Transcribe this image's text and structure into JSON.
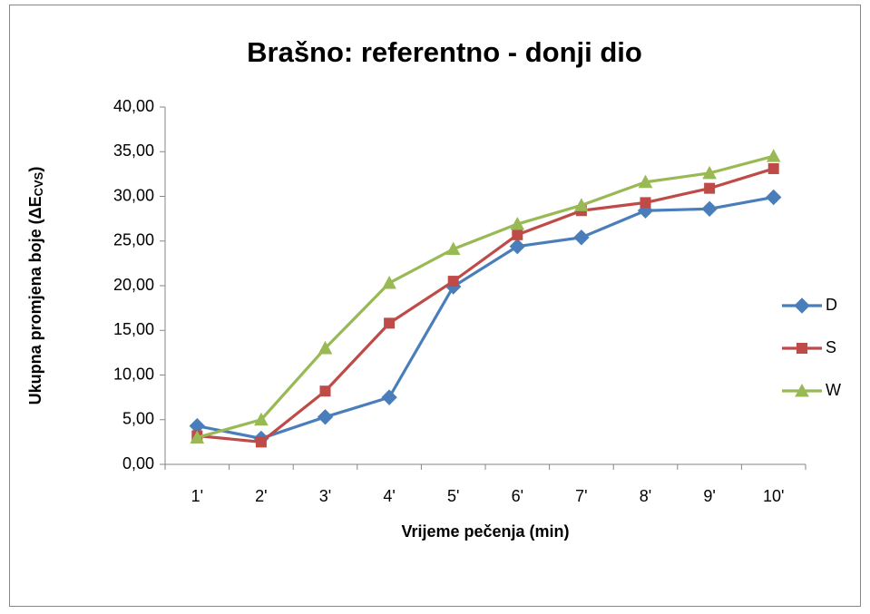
{
  "chart_data": {
    "type": "line",
    "title": "Brašno: referentno - donji dio",
    "xlabel": "Vrijeme pečenja (min)",
    "ylabel": "Ukupna promjena boje (ΔE",
    "ylabel_sub": "CVS",
    "ylabel_end": ")",
    "categories": [
      "1'",
      "2'",
      "3'",
      "4'",
      "5'",
      "6'",
      "7'",
      "8'",
      "9'",
      "10'"
    ],
    "series": [
      {
        "name": "D",
        "color": "#4a7ebb",
        "marker": "diamond",
        "values": [
          4.3,
          2.9,
          5.3,
          7.5,
          19.9,
          24.4,
          25.4,
          28.4,
          28.6,
          29.9
        ]
      },
      {
        "name": "S",
        "color": "#be4b48",
        "marker": "square",
        "values": [
          3.2,
          2.5,
          8.2,
          15.8,
          20.5,
          25.7,
          28.4,
          29.3,
          30.9,
          33.1
        ]
      },
      {
        "name": "W",
        "color": "#98b954",
        "marker": "triangle",
        "values": [
          3.0,
          5.0,
          13.0,
          20.3,
          24.1,
          26.9,
          29.0,
          31.6,
          32.6,
          34.5
        ]
      }
    ],
    "ylim": [
      0,
      40
    ],
    "yticks": [
      {
        "value": 0,
        "label": "0,00"
      },
      {
        "value": 5,
        "label": "5,00"
      },
      {
        "value": 10,
        "label": "10,00"
      },
      {
        "value": 15,
        "label": "15,00"
      },
      {
        "value": 20,
        "label": "20,00"
      },
      {
        "value": 25,
        "label": "25,00"
      },
      {
        "value": 30,
        "label": "30,00"
      },
      {
        "value": 35,
        "label": "35,00"
      },
      {
        "value": 40,
        "label": "40,00"
      }
    ],
    "grid": false,
    "legend": "right"
  }
}
